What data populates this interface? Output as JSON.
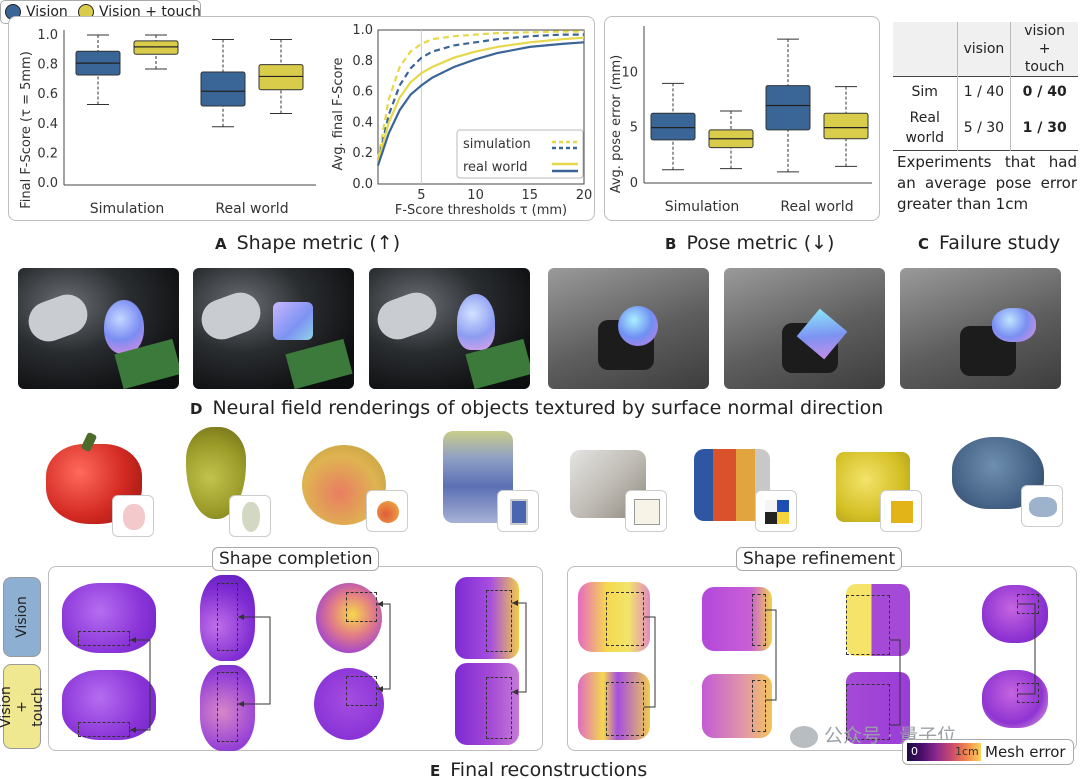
{
  "legend": {
    "vision": "Vision",
    "vision_touch": "Vision + touch",
    "vision_color": "#3a6597",
    "vision_touch_color": "#d9cc4a"
  },
  "panel_a": {
    "box_chart": {
      "ylabel": "Final F-Score (τ = 5mm)",
      "yticks": [
        "0.0",
        "0.2",
        "0.4",
        "0.6",
        "0.8",
        "1.0"
      ],
      "groups": [
        "Simulation",
        "Real world"
      ]
    },
    "line_chart": {
      "ylabel": "Avg. final F-Score",
      "xlabel": "F-Score thresholds τ (mm)",
      "yticks": [
        "0.0",
        "0.2",
        "0.4",
        "0.6",
        "0.8",
        "1.0"
      ],
      "xticks": [
        "5",
        "10",
        "15",
        "20"
      ],
      "legend": [
        "simulation",
        "real world"
      ]
    },
    "caption_letter": "A",
    "caption": "Shape metric (↑)"
  },
  "panel_b": {
    "ylabel": "Avg. pose error (mm)",
    "yticks": [
      "0",
      "5",
      "10"
    ],
    "groups": [
      "Simulation",
      "Real world"
    ],
    "caption_letter": "B",
    "caption": "Pose metric (↓)"
  },
  "panel_c": {
    "header": [
      "",
      "vision",
      "vision +\ntouch"
    ],
    "rows": [
      {
        "label": "Sim",
        "vision": "1 / 40",
        "touch": "0 / 40"
      },
      {
        "label": "Real\nworld",
        "vision": "5 / 30",
        "touch": "1 / 30"
      }
    ],
    "note": "Experiments that had an average pose error greater than 1cm",
    "caption_letter": "C",
    "caption": "Failure study"
  },
  "panel_d": {
    "caption_letter": "D",
    "caption": "Neural field renderings of objects textured by surface normal direction"
  },
  "panel_e": {
    "completion_label": "Shape completion",
    "refinement_label": "Shape refinement",
    "row_vision": "Vision",
    "row_touch": "Vision +\ntouch",
    "colorbar_min": "0",
    "colorbar_max": "1cm",
    "colorbar_label": "Mesh error",
    "caption_letter": "E",
    "caption": "Final reconstructions"
  },
  "watermark": "公众号 · 量子位",
  "chart_data": [
    {
      "type": "box",
      "title": "Final F-Score (τ = 5mm)",
      "categories": [
        "Simulation",
        "Real world"
      ],
      "series": [
        {
          "name": "Vision",
          "boxes": [
            {
              "min": 0.53,
              "q1": 0.73,
              "median": 0.81,
              "q3": 0.89,
              "max": 1.0
            },
            {
              "min": 0.38,
              "q1": 0.52,
              "median": 0.62,
              "q3": 0.75,
              "max": 0.97
            }
          ]
        },
        {
          "name": "Vision + touch",
          "boxes": [
            {
              "min": 0.77,
              "q1": 0.87,
              "median": 0.92,
              "q3": 0.96,
              "max": 1.0
            },
            {
              "min": 0.47,
              "q1": 0.63,
              "median": 0.72,
              "q3": 0.8,
              "max": 0.97
            }
          ]
        }
      ],
      "ylim": [
        0,
        1
      ]
    },
    {
      "type": "line",
      "xlabel": "F-Score thresholds τ (mm)",
      "ylabel": "Avg. final F-Score",
      "xlim": [
        1,
        20
      ],
      "ylim": [
        0,
        1
      ],
      "x": [
        1,
        2,
        3,
        4,
        5,
        6,
        8,
        10,
        12,
        15,
        18,
        20
      ],
      "series": [
        {
          "name": "simulation Vision + touch",
          "style": "dashed",
          "values": [
            0.16,
            0.55,
            0.76,
            0.86,
            0.91,
            0.94,
            0.96,
            0.97,
            0.98,
            0.985,
            0.99,
            0.99
          ]
        },
        {
          "name": "simulation Vision",
          "style": "dashed",
          "values": [
            0.14,
            0.45,
            0.64,
            0.75,
            0.82,
            0.86,
            0.9,
            0.92,
            0.94,
            0.96,
            0.97,
            0.97
          ]
        },
        {
          "name": "real world Vision + touch",
          "style": "solid",
          "values": [
            0.14,
            0.4,
            0.56,
            0.66,
            0.72,
            0.76,
            0.82,
            0.86,
            0.89,
            0.92,
            0.94,
            0.95
          ]
        },
        {
          "name": "real world Vision",
          "style": "solid",
          "values": [
            0.12,
            0.33,
            0.48,
            0.58,
            0.64,
            0.69,
            0.76,
            0.81,
            0.85,
            0.89,
            0.91,
            0.92
          ]
        }
      ]
    },
    {
      "type": "box",
      "title": "Avg. pose error (mm)",
      "categories": [
        "Simulation",
        "Real world"
      ],
      "series": [
        {
          "name": "Vision",
          "boxes": [
            {
              "min": 1.2,
              "q1": 3.9,
              "median": 5.0,
              "q3": 6.3,
              "max": 9.0
            },
            {
              "min": 1.0,
              "q1": 4.8,
              "median": 7.0,
              "q3": 8.8,
              "max": 13.0
            }
          ]
        },
        {
          "name": "Vision + touch",
          "boxes": [
            {
              "min": 1.3,
              "q1": 3.2,
              "median": 4.0,
              "q3": 4.8,
              "max": 6.5
            },
            {
              "min": 1.5,
              "q1": 4.0,
              "median": 5.0,
              "q3": 6.3,
              "max": 8.7
            }
          ]
        }
      ],
      "ylim": [
        0,
        14
      ]
    }
  ]
}
